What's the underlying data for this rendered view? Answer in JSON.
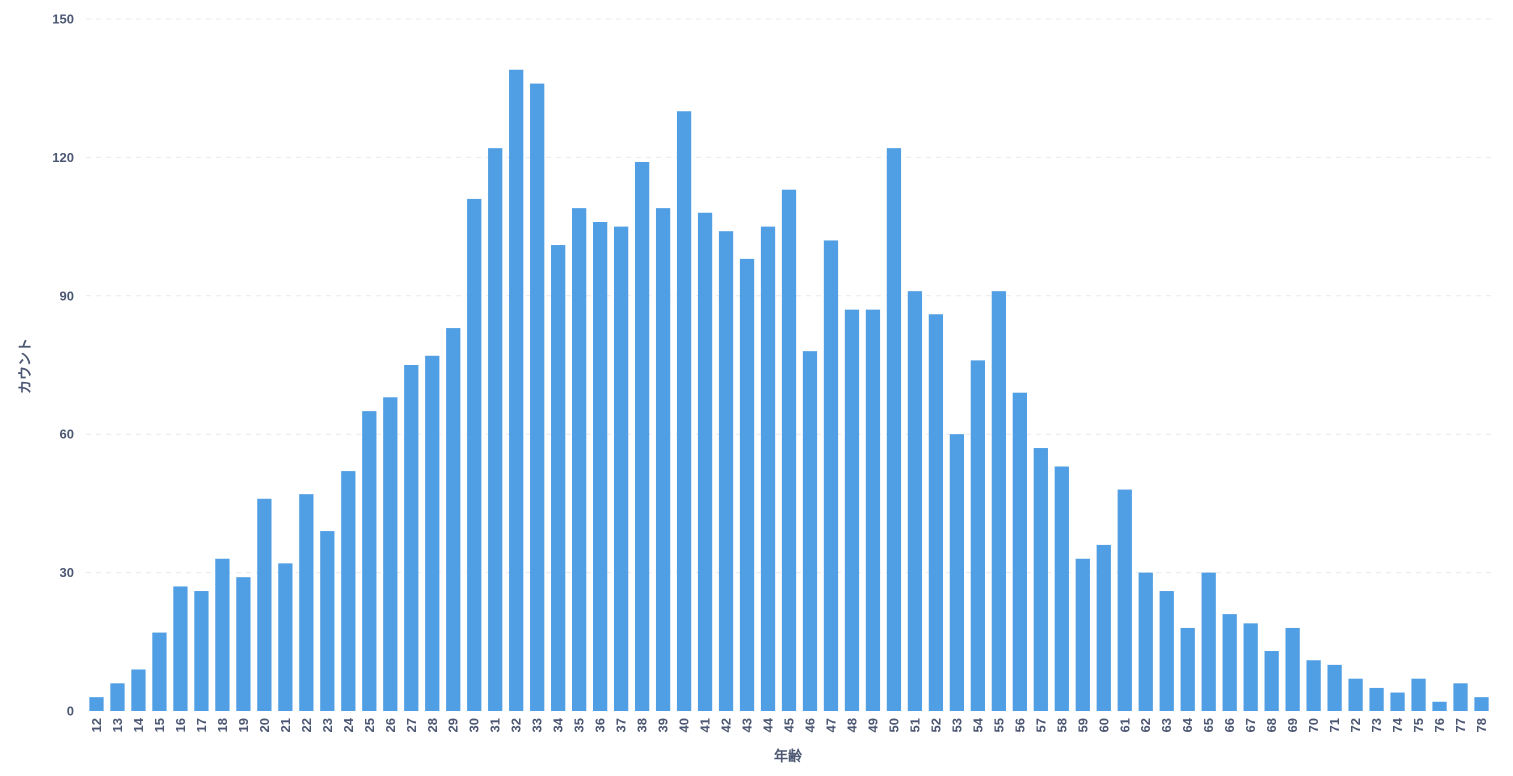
{
  "chart_data": {
    "type": "bar",
    "title": "",
    "xlabel": "年齢",
    "ylabel": "カウント",
    "ylim": [
      0,
      150
    ],
    "yticks": [
      0,
      30,
      60,
      90,
      120,
      150
    ],
    "grid": true,
    "bar_color": "#509ee3",
    "categories": [
      "12",
      "13",
      "14",
      "15",
      "16",
      "17",
      "18",
      "19",
      "20",
      "21",
      "22",
      "23",
      "24",
      "25",
      "26",
      "27",
      "28",
      "29",
      "30",
      "31",
      "32",
      "33",
      "34",
      "35",
      "36",
      "37",
      "38",
      "39",
      "40",
      "41",
      "42",
      "43",
      "44",
      "45",
      "46",
      "47",
      "48",
      "49",
      "50",
      "51",
      "52",
      "53",
      "54",
      "55",
      "56",
      "57",
      "58",
      "59",
      "60",
      "61",
      "62",
      "63",
      "64",
      "65",
      "66",
      "67",
      "68",
      "69",
      "70",
      "71",
      "72",
      "73",
      "74",
      "75",
      "76",
      "77",
      "78"
    ],
    "values": [
      3,
      6,
      9,
      17,
      27,
      26,
      33,
      29,
      46,
      32,
      47,
      39,
      52,
      65,
      68,
      75,
      77,
      83,
      111,
      122,
      139,
      136,
      101,
      109,
      106,
      105,
      119,
      109,
      130,
      108,
      104,
      98,
      105,
      113,
      78,
      102,
      87,
      87,
      122,
      91,
      86,
      60,
      76,
      91,
      69,
      57,
      53,
      33,
      36,
      48,
      30,
      26,
      18,
      30,
      21,
      19,
      13,
      18,
      11,
      10,
      7,
      5,
      4,
      7,
      2,
      6,
      3
    ]
  }
}
